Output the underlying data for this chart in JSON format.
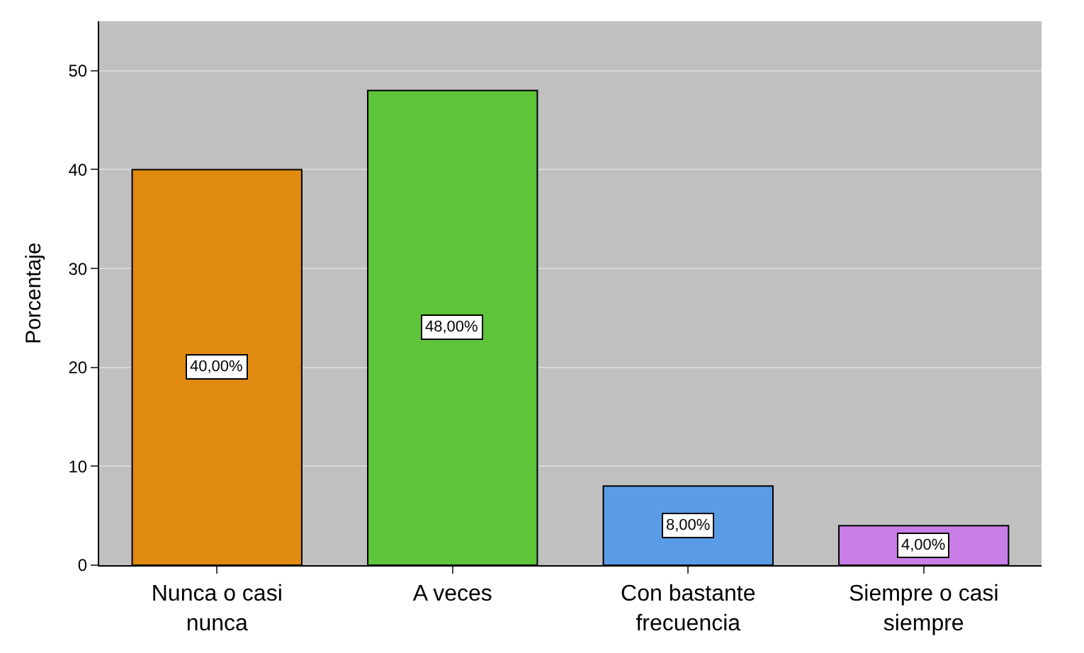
{
  "chart_data": {
    "type": "bar",
    "ylabel": "Porcentaje",
    "categories": [
      "Nunca o casi nunca",
      "A veces",
      "Con bastante frecuencia",
      "Siempre o casi siempre"
    ],
    "values": [
      40,
      48,
      8,
      4
    ],
    "colors": [
      "#e08a0f",
      "#5ec43a",
      "#5a9be6",
      "#c87ee6"
    ],
    "value_labels": [
      "40,00%",
      "48,00%",
      "8,00%",
      "4,00%"
    ],
    "ylim": [
      0,
      55
    ],
    "yticks": [
      0,
      10,
      20,
      30,
      40,
      50
    ],
    "grid": "y",
    "legend": false
  }
}
